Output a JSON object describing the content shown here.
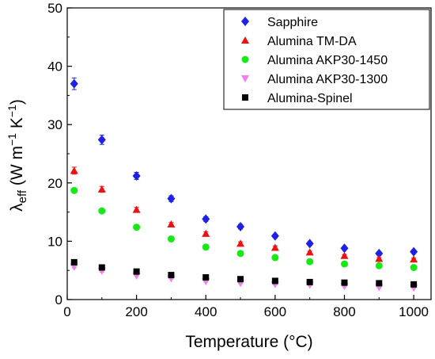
{
  "chart_data": {
    "type": "scatter",
    "xlabel": "Temperature (°C)",
    "ylabel": {
      "base": "λ",
      "sub": "eff",
      "units_prefix": " (W m",
      "sup1": "−1",
      "units_mid": " K",
      "sup2": "−1",
      "units_suffix": ")"
    },
    "xlim": [
      0,
      1050
    ],
    "ylim": [
      0,
      50
    ],
    "xticks": [
      0,
      200,
      400,
      600,
      800,
      1000
    ],
    "yticks": [
      0,
      10,
      20,
      30,
      40,
      50
    ],
    "grid": false,
    "legend_position": "top-right",
    "series": [
      {
        "name": "Sapphire",
        "marker": "diamond",
        "color": "#1f22e6",
        "x": [
          20,
          100,
          200,
          300,
          400,
          500,
          600,
          700,
          800,
          900,
          1000
        ],
        "y": [
          37.0,
          27.4,
          21.2,
          17.3,
          13.8,
          12.5,
          10.9,
          9.6,
          8.8,
          7.9,
          8.2
        ],
        "err": [
          1.0,
          0.8,
          0.6,
          0.5,
          0.4,
          0.4,
          0.3,
          0.3,
          0.3,
          0.3,
          0.3
        ]
      },
      {
        "name": "Alumina TM-DA",
        "marker": "triangle-up",
        "color": "#ee1111",
        "x": [
          20,
          100,
          200,
          300,
          400,
          500,
          600,
          700,
          800,
          900,
          1000
        ],
        "y": [
          22.1,
          18.9,
          15.4,
          12.9,
          11.3,
          9.6,
          8.9,
          8.1,
          7.5,
          7.0,
          6.9
        ],
        "err": [
          0.6,
          0.5,
          0.4,
          0.3,
          0.3,
          0.3,
          0.3,
          0.2,
          0.2,
          0.2,
          0.2
        ]
      },
      {
        "name": "Alumina AKP30-1450",
        "marker": "circle",
        "color": "#17e917",
        "x": [
          20,
          100,
          200,
          300,
          400,
          500,
          600,
          700,
          800,
          900,
          1000
        ],
        "y": [
          18.7,
          15.2,
          12.4,
          10.4,
          9.0,
          7.9,
          7.2,
          6.5,
          6.1,
          5.8,
          5.5
        ],
        "err": [
          0.4,
          0.3,
          0.3,
          0.2,
          0.2,
          0.2,
          0.2,
          0.2,
          0.2,
          0.2,
          0.2
        ]
      },
      {
        "name": "Alumina AKP30-1300",
        "marker": "triangle-down",
        "color": "#ee80ee",
        "x": [
          20,
          100,
          200,
          300,
          400,
          500,
          600,
          700,
          800,
          900,
          1000
        ],
        "y": [
          5.6,
          4.9,
          4.1,
          3.6,
          3.1,
          2.8,
          2.6,
          2.5,
          2.3,
          2.1,
          2.0
        ],
        "err": [
          0.2,
          0.2,
          0.1,
          0.1,
          0.1,
          0.1,
          0.1,
          0.1,
          0.1,
          0.1,
          0.1
        ]
      },
      {
        "name": "Alumina-Spinel",
        "marker": "square",
        "color": "#000000",
        "x": [
          20,
          100,
          200,
          300,
          400,
          500,
          600,
          700,
          800,
          900,
          1000
        ],
        "y": [
          6.4,
          5.5,
          4.8,
          4.2,
          3.8,
          3.5,
          3.2,
          3.0,
          2.9,
          2.8,
          2.6
        ],
        "err": [
          0.2,
          0.2,
          0.1,
          0.1,
          0.1,
          0.1,
          0.1,
          0.1,
          0.1,
          0.1,
          0.1
        ]
      }
    ]
  }
}
